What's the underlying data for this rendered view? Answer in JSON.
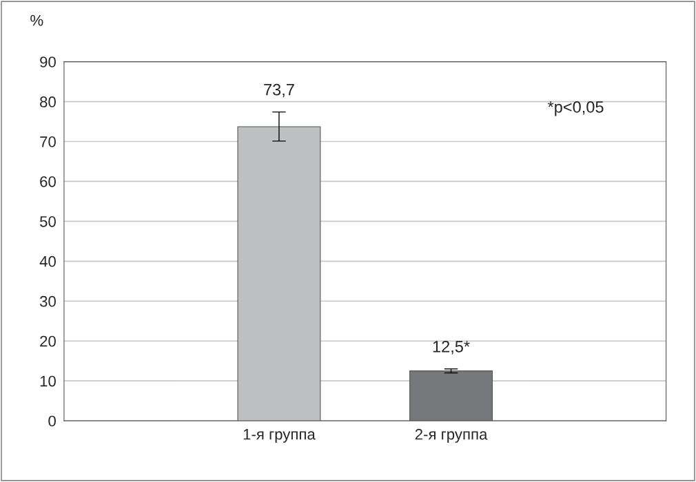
{
  "chart_data": {
    "type": "bar",
    "ylabel": "%",
    "categories": [
      "1-я группа",
      "2-я группа"
    ],
    "values": [
      73.7,
      12.5
    ],
    "colors": [
      "#bfc0c2",
      "#77787b"
    ],
    "errors": [
      [
        70.1,
        77.4
      ],
      [
        12.0,
        13.0
      ]
    ],
    "value_labels": [
      "73,7",
      "12,5*"
    ],
    "annotations": [
      "*p<0,05"
    ],
    "ylim": [
      0,
      90
    ],
    "yticks": [
      0,
      10,
      20,
      30,
      40,
      50,
      60,
      70,
      80,
      90
    ],
    "grid": "y",
    "legend": false
  }
}
